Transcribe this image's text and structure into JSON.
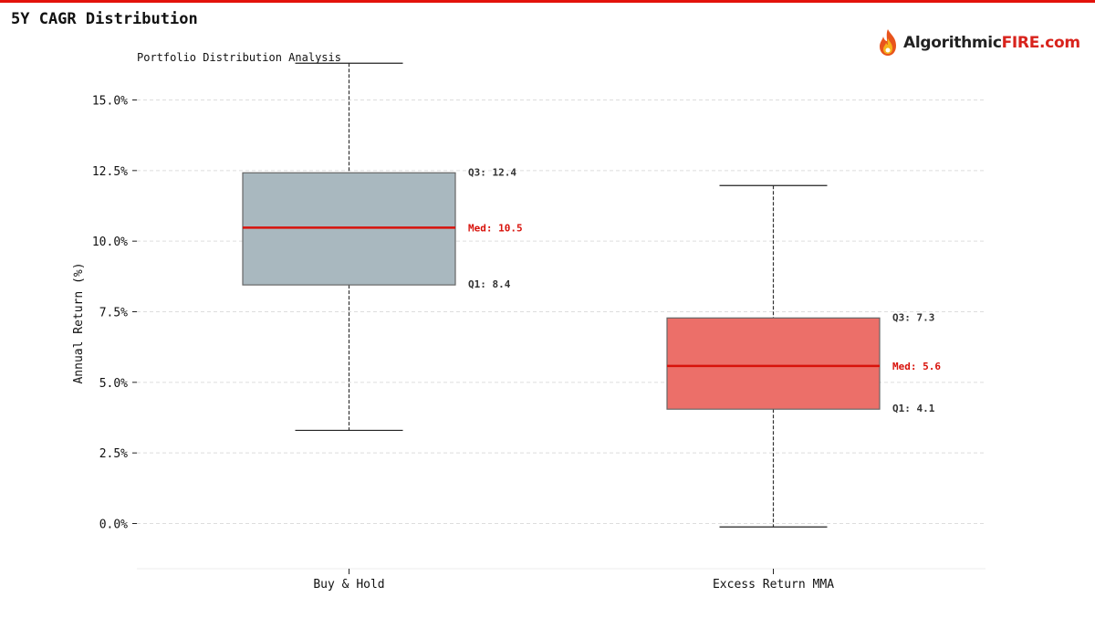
{
  "header": {
    "title": "5Y CAGR Distribution",
    "accent_color": "#e3120b"
  },
  "logo": {
    "text_main": "Algorithmic",
    "text_accent": "FIRE.com",
    "icon": "flame-icon"
  },
  "chart_data": {
    "type": "box",
    "subtitle": "Portfolio Distribution Analysis",
    "ylabel": "Annual Return (%)",
    "xlabel": "",
    "ylim": [
      -1.6,
      16.6
    ],
    "yticks": [
      0,
      2.5,
      5,
      7.5,
      10,
      12.5,
      15
    ],
    "ytick_labels": [
      "0.0%",
      "2.5%",
      "5.0%",
      "7.5%",
      "10.0%",
      "12.5%",
      "15.0%"
    ],
    "grid": true,
    "categories": [
      "Buy & Hold",
      "Excess Return MMA"
    ],
    "series": [
      {
        "category": "Buy & Hold",
        "whisker_low": 3.3,
        "q1": 8.45,
        "median": 10.48,
        "q3": 12.42,
        "whisker_high": 16.3,
        "q1_label": "Q1: 8.4",
        "median_label": "Med: 10.5",
        "q3_label": "Q3: 12.4",
        "color": "#a9b8bf"
      },
      {
        "category": "Excess Return MMA",
        "whisker_low": -0.12,
        "q1": 4.05,
        "median": 5.58,
        "q3": 7.28,
        "whisker_high": 11.97,
        "q1_label": "Q1: 4.1",
        "median_label": "Med: 5.6",
        "q3_label": "Q3: 7.3",
        "color": "#ec6f69"
      }
    ],
    "median_color": "#d8120b"
  }
}
